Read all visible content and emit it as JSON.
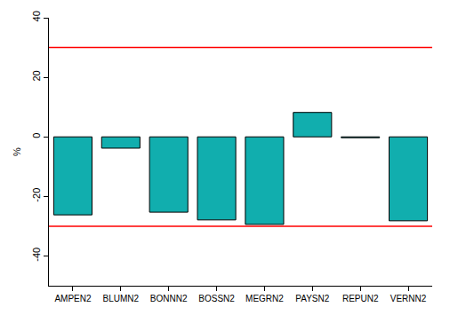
{
  "chart_data": {
    "type": "bar",
    "categories": [
      "AMPEN2",
      "BLUMN2",
      "BONNN2",
      "BOSSN2",
      "MEGRN2",
      "PAYSN2",
      "REPUN2",
      "VERNN2"
    ],
    "values": [
      -26.2,
      -3.8,
      -25.3,
      -27.9,
      -29.4,
      8.2,
      -0.3,
      -28.2
    ],
    "color": "#11aeae",
    "y_label": "%",
    "reference_lines": [
      30,
      -30
    ],
    "ylim": [
      -50,
      40
    ],
    "yticks": [
      -40,
      -20,
      0,
      20,
      40
    ],
    "grid": false
  }
}
